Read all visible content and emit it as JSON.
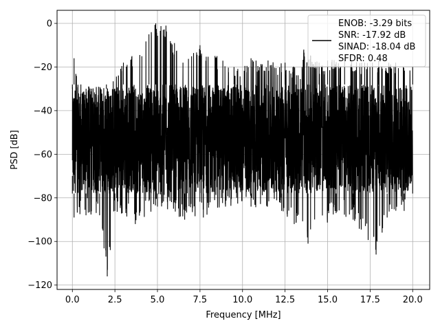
{
  "chart_data": {
    "type": "line",
    "title": "",
    "xlabel": "Frequency [MHz]",
    "ylabel": "PSD [dB]",
    "xlim": [
      -0.9,
      21.0
    ],
    "ylim": [
      -122,
      6
    ],
    "xticks": [
      0.0,
      2.5,
      5.0,
      7.5,
      10.0,
      12.5,
      15.0,
      17.5,
      20.0
    ],
    "xtick_labels": [
      "0.0",
      "2.5",
      "5.0",
      "7.5",
      "10.0",
      "12.5",
      "15.0",
      "17.5",
      "20.0"
    ],
    "yticks": [
      0,
      -20,
      -40,
      -60,
      -80,
      -100,
      -120
    ],
    "ytick_labels": [
      "0",
      "−20",
      "−40",
      "−60",
      "−80",
      "−100",
      "−120"
    ],
    "grid": true,
    "legend_position": "upper-right",
    "series": [
      {
        "color": "#000000",
        "style": "dense-noise-spectrum",
        "x_range": [
          0.0,
          20.0
        ],
        "typical_band_db": [
          -78,
          -28
        ],
        "peak_envelope": [
          {
            "x": 0.0,
            "y": -30
          },
          {
            "x": 0.1,
            "y": -16
          },
          {
            "x": 0.5,
            "y": -33
          },
          {
            "x": 1.0,
            "y": -28
          },
          {
            "x": 2.0,
            "y": -30
          },
          {
            "x": 3.0,
            "y": -18
          },
          {
            "x": 3.5,
            "y": -15
          },
          {
            "x": 4.5,
            "y": -5
          },
          {
            "x": 4.9,
            "y": 0
          },
          {
            "x": 5.5,
            "y": -1
          },
          {
            "x": 6.0,
            "y": -9
          },
          {
            "x": 6.5,
            "y": -18
          },
          {
            "x": 7.5,
            "y": -10
          },
          {
            "x": 8.5,
            "y": -15
          },
          {
            "x": 9.5,
            "y": -20
          },
          {
            "x": 10.5,
            "y": -16
          },
          {
            "x": 11.5,
            "y": -17
          },
          {
            "x": 12.5,
            "y": -18
          },
          {
            "x": 13.5,
            "y": -20
          },
          {
            "x": 13.6,
            "y": -12
          },
          {
            "x": 14.5,
            "y": -18
          },
          {
            "x": 15.0,
            "y": -17
          },
          {
            "x": 16.0,
            "y": -16
          },
          {
            "x": 17.0,
            "y": -18
          },
          {
            "x": 18.0,
            "y": -17
          },
          {
            "x": 19.0,
            "y": -18
          },
          {
            "x": 20.0,
            "y": -20
          }
        ],
        "trough_envelope": [
          {
            "x": 0.0,
            "y": -70
          },
          {
            "x": 0.1,
            "y": -89
          },
          {
            "x": 0.8,
            "y": -88
          },
          {
            "x": 1.6,
            "y": -88
          },
          {
            "x": 2.05,
            "y": -116
          },
          {
            "x": 2.5,
            "y": -86
          },
          {
            "x": 3.7,
            "y": -92
          },
          {
            "x": 5.0,
            "y": -84
          },
          {
            "x": 6.6,
            "y": -90
          },
          {
            "x": 7.7,
            "y": -89
          },
          {
            "x": 9.0,
            "y": -84
          },
          {
            "x": 10.5,
            "y": -84
          },
          {
            "x": 12.3,
            "y": -86
          },
          {
            "x": 13.85,
            "y": -101
          },
          {
            "x": 15.5,
            "y": -87
          },
          {
            "x": 16.5,
            "y": -90
          },
          {
            "x": 17.85,
            "y": -106
          },
          {
            "x": 18.5,
            "y": -89
          },
          {
            "x": 19.5,
            "y": -86
          },
          {
            "x": 20.0,
            "y": -70
          }
        ]
      }
    ],
    "legend": {
      "lines": [
        "ENOB: -3.29 bits",
        "SNR: -17.92 dB",
        "SINAD: -18.04 dB",
        "SFDR: 0.48"
      ]
    }
  }
}
